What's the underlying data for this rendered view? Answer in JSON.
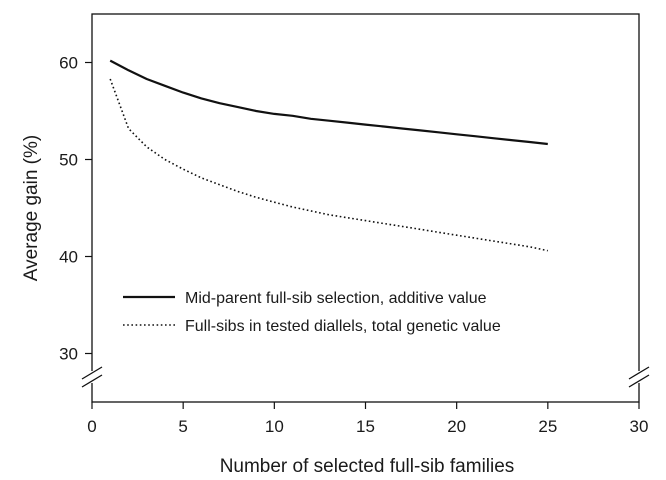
{
  "chart_data": {
    "type": "line",
    "xlabel": "Number of selected full-sib families",
    "ylabel": "Average gain (%)",
    "xlim": [
      0,
      30
    ],
    "ylim": [
      25,
      65
    ],
    "xticks": [
      0,
      5,
      10,
      15,
      20,
      25,
      30
    ],
    "yticks": [
      30,
      40,
      50,
      60
    ],
    "axis_break": "y-axis break below 30",
    "grid": false,
    "legend_position": "lower-left",
    "series": [
      {
        "name": "Mid-parent full-sib selection, additive value",
        "style": "solid",
        "color": "#111111",
        "x": [
          1,
          2,
          3,
          4,
          5,
          6,
          7,
          8,
          9,
          10,
          11,
          12,
          13,
          14,
          15,
          16,
          17,
          18,
          19,
          20,
          21,
          22,
          23,
          24,
          25
        ],
        "values": [
          60.2,
          59.2,
          58.3,
          57.6,
          56.9,
          56.3,
          55.8,
          55.4,
          55.0,
          54.7,
          54.5,
          54.2,
          54.0,
          53.8,
          53.6,
          53.4,
          53.2,
          53.0,
          52.8,
          52.6,
          52.4,
          52.2,
          52.0,
          51.8,
          51.6
        ]
      },
      {
        "name": "Full-sibs in tested diallels, total genetic value",
        "style": "dotted",
        "color": "#111111",
        "x": [
          1,
          2,
          3,
          4,
          5,
          6,
          7,
          8,
          9,
          10,
          11,
          12,
          13,
          14,
          15,
          16,
          17,
          18,
          19,
          20,
          21,
          22,
          23,
          24,
          25
        ],
        "values": [
          58.3,
          53.2,
          51.3,
          50.0,
          49.0,
          48.1,
          47.4,
          46.7,
          46.1,
          45.6,
          45.1,
          44.7,
          44.3,
          44.0,
          43.7,
          43.4,
          43.1,
          42.8,
          42.5,
          42.2,
          41.9,
          41.6,
          41.3,
          41.0,
          40.6
        ]
      }
    ]
  }
}
